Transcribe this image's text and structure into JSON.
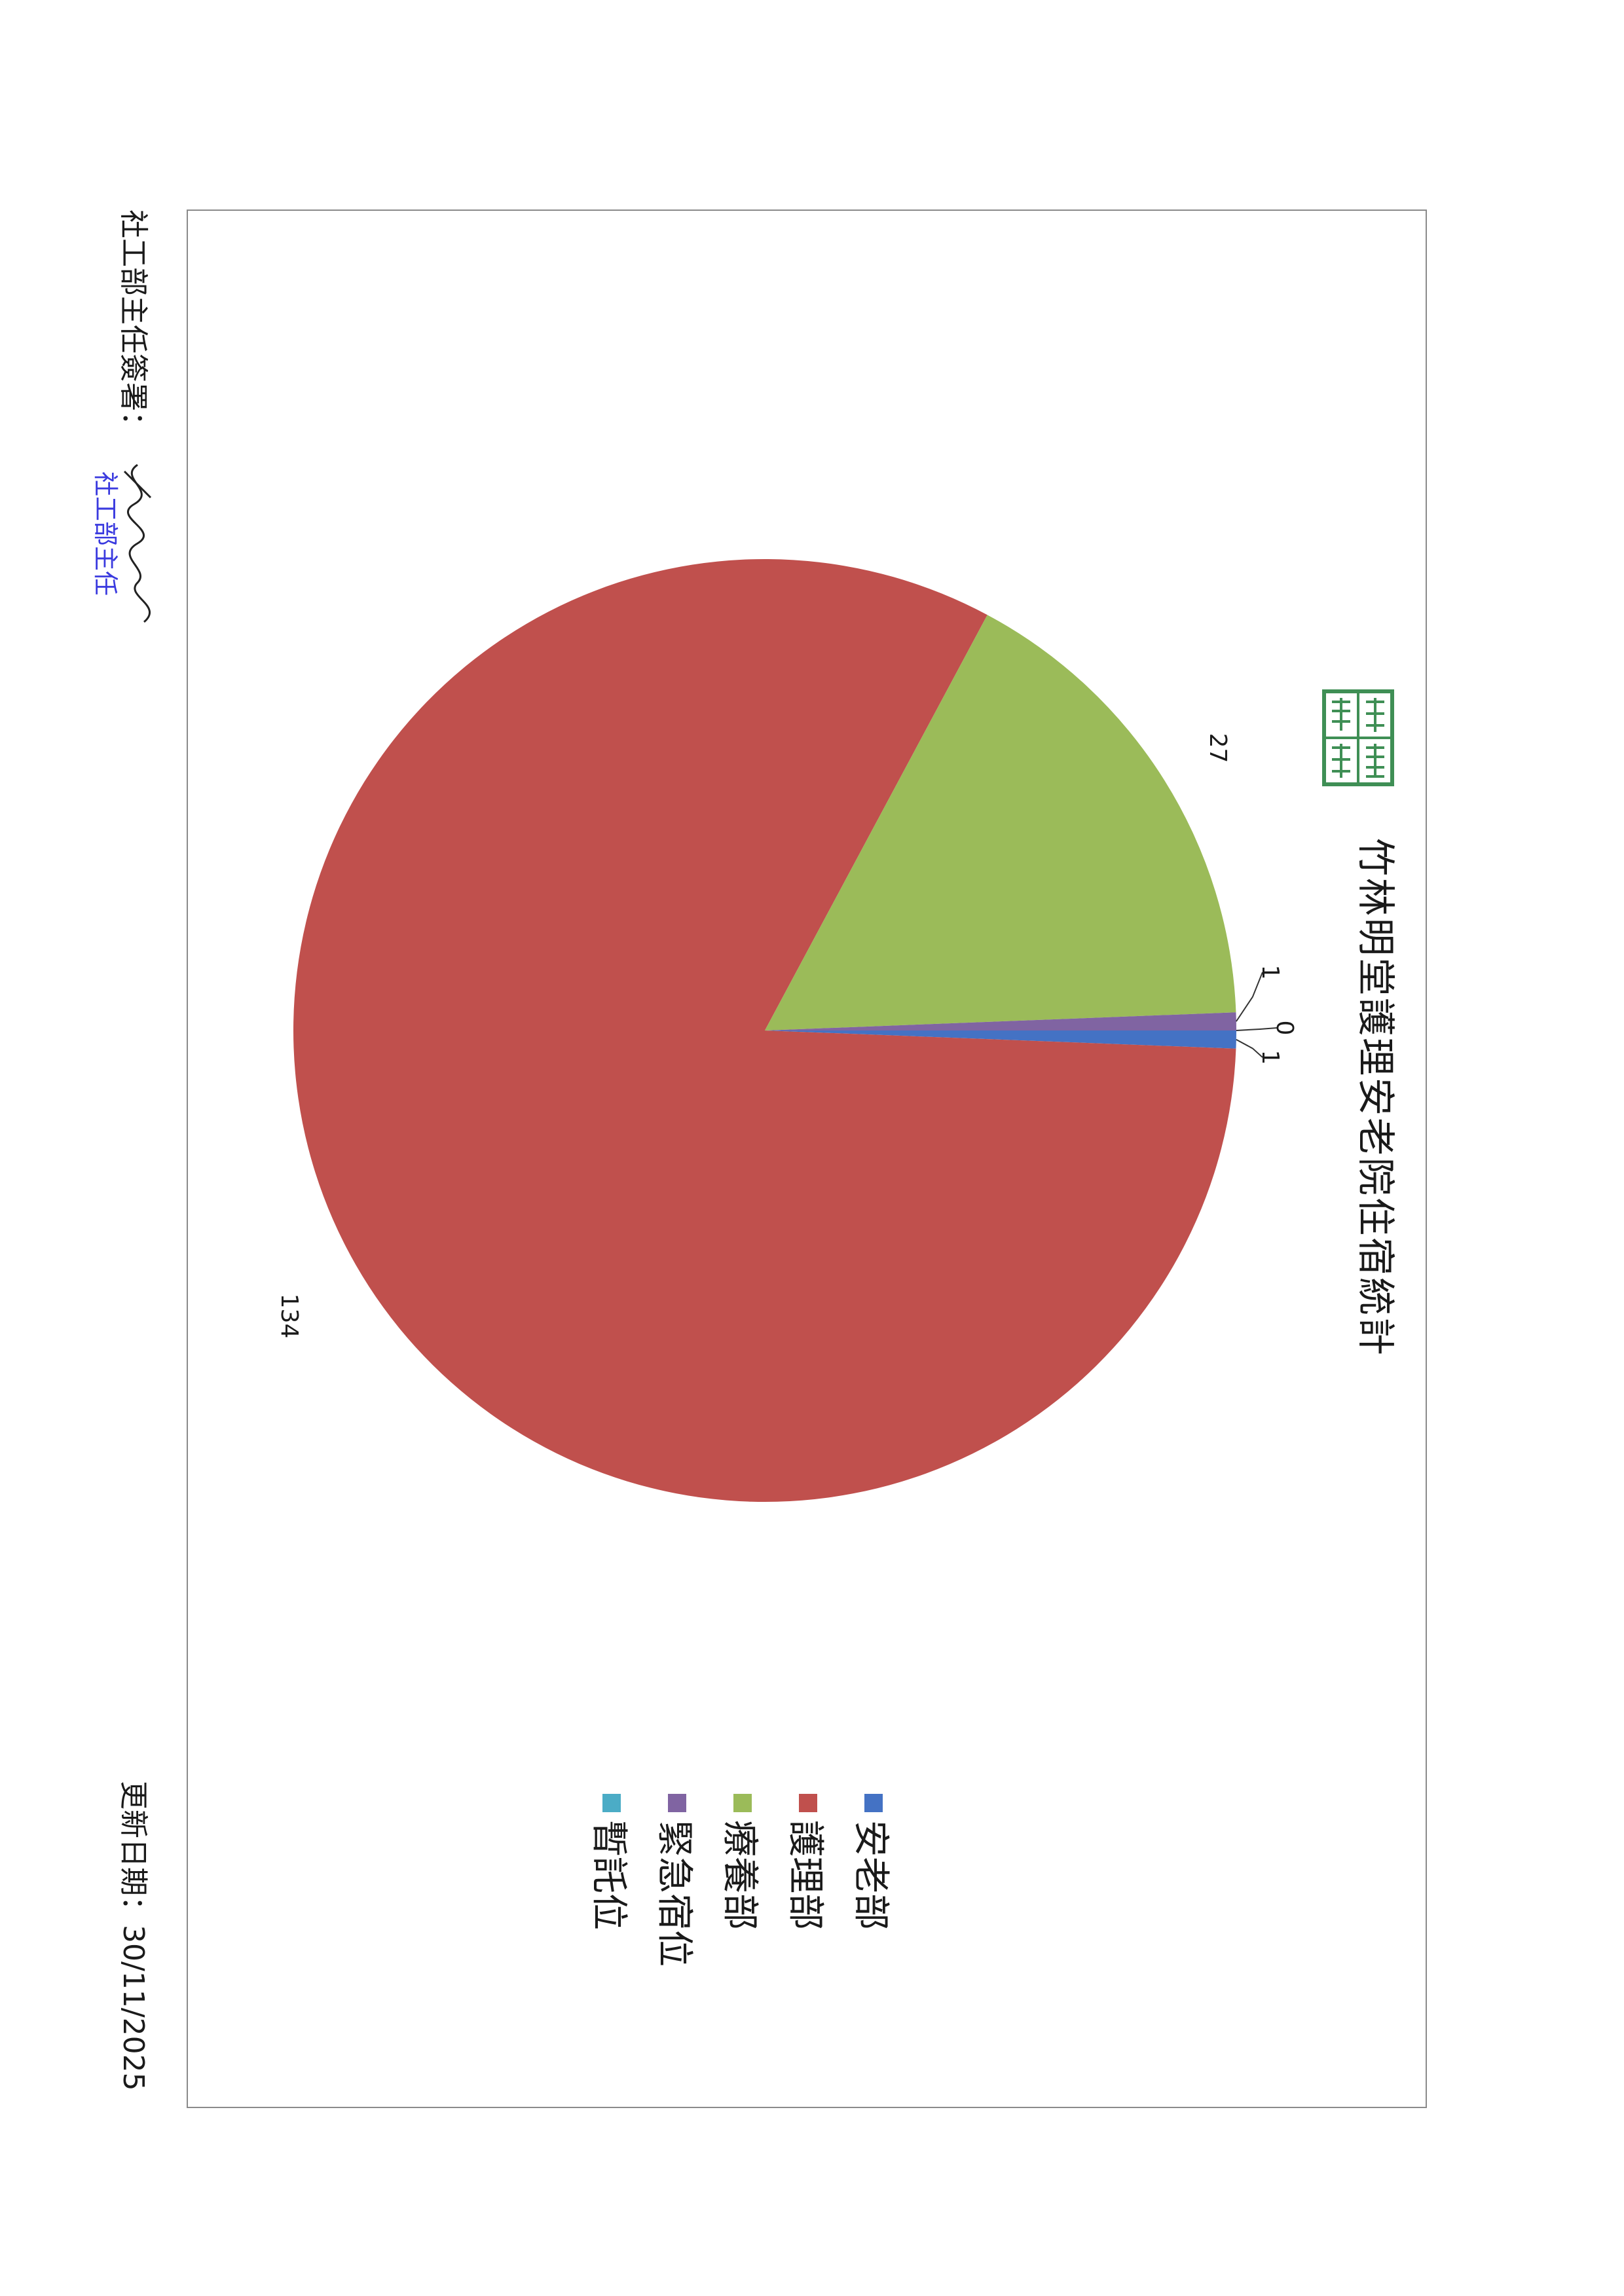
{
  "header": {
    "title": "竹林明堂護理安老院住宿統計"
  },
  "footer": {
    "signature_label": "社工部主任簽署：",
    "stamp_text": "社工部主任",
    "update_date": "更新日期：30/11/2025"
  },
  "legend": [
    {
      "label": "安老部",
      "color": "#4472c4"
    },
    {
      "label": "護理部",
      "color": "#c0504d"
    },
    {
      "label": "療養部",
      "color": "#9bbb59"
    },
    {
      "label": "緊急宿位",
      "color": "#8064a2"
    },
    {
      "label": "暫託位",
      "color": "#4bacc6"
    }
  ],
  "chart_data": {
    "type": "pie",
    "title": "竹林明堂護理安老院住宿統計",
    "categories": [
      "安老部",
      "護理部",
      "療養部",
      "緊急宿位",
      "暫託位"
    ],
    "values": [
      1,
      134,
      27,
      1,
      0
    ],
    "colors": [
      "#4472c4",
      "#c0504d",
      "#9bbb59",
      "#8064a2",
      "#4bacc6"
    ],
    "data_labels": [
      "1",
      "134",
      "27",
      "1",
      "0"
    ],
    "legend_position": "bottom"
  }
}
